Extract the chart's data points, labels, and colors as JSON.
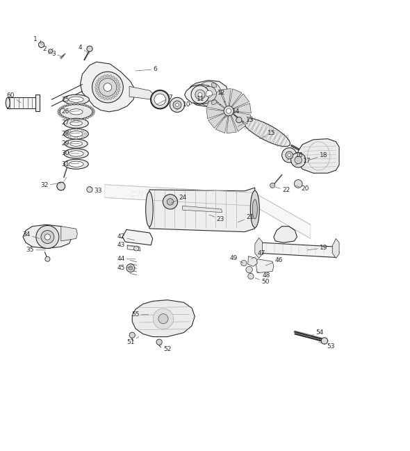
{
  "bg_color": "#ffffff",
  "fig_width": 5.9,
  "fig_height": 6.49,
  "watermark": "©ReplacementParts.com",
  "watermark_color": "#bbbbbb",
  "line_color": "#2a2a2a",
  "label_color": "#2a2a2a",
  "label_fontsize": 6.5,
  "dpi": 100,
  "label_data": {
    "1": [
      0.103,
      0.942,
      0.086,
      0.955
    ],
    "2": [
      0.128,
      0.921,
      0.108,
      0.932
    ],
    "3": [
      0.155,
      0.912,
      0.13,
      0.92
    ],
    "4": [
      0.218,
      0.92,
      0.195,
      0.935
    ],
    "6": [
      0.33,
      0.878,
      0.378,
      0.882
    ],
    "7": [
      0.382,
      0.796,
      0.415,
      0.813
    ],
    "10": [
      0.43,
      0.782,
      0.455,
      0.796
    ],
    "11": [
      0.462,
      0.795,
      0.49,
      0.81
    ],
    "12": [
      0.49,
      0.812,
      0.54,
      0.825
    ],
    "13": [
      0.58,
      0.742,
      0.61,
      0.758
    ],
    "14": [
      0.545,
      0.762,
      0.575,
      0.778
    ],
    "15": [
      0.633,
      0.712,
      0.663,
      0.726
    ],
    "16": [
      0.7,
      0.66,
      0.73,
      0.672
    ],
    "17": [
      0.72,
      0.648,
      0.75,
      0.658
    ],
    "18": [
      0.755,
      0.66,
      0.79,
      0.672
    ],
    "19": [
      0.75,
      0.44,
      0.79,
      0.445
    ],
    "20": [
      0.72,
      0.598,
      0.745,
      0.59
    ],
    "21": [
      0.58,
      0.508,
      0.61,
      0.52
    ],
    "22": [
      0.672,
      0.594,
      0.698,
      0.586
    ],
    "23": [
      0.51,
      0.526,
      0.538,
      0.516
    ],
    "24": [
      0.418,
      0.555,
      0.445,
      0.568
    ],
    "25": [
      0.193,
      0.808,
      0.158,
      0.808
    ],
    "26": [
      0.193,
      0.78,
      0.158,
      0.778
    ],
    "27": [
      0.193,
      0.752,
      0.158,
      0.752
    ],
    "28": [
      0.193,
      0.726,
      0.158,
      0.724
    ],
    "29": [
      0.193,
      0.7,
      0.158,
      0.7
    ],
    "30": [
      0.193,
      0.676,
      0.158,
      0.676
    ],
    "31": [
      0.193,
      0.652,
      0.158,
      0.65
    ],
    "32": [
      0.148,
      0.604,
      0.108,
      0.598
    ],
    "33": [
      0.215,
      0.596,
      0.238,
      0.585
    ],
    "34": [
      0.095,
      0.468,
      0.063,
      0.478
    ],
    "35": [
      0.11,
      0.44,
      0.072,
      0.44
    ],
    "42": [
      0.328,
      0.464,
      0.295,
      0.472
    ],
    "43": [
      0.335,
      0.448,
      0.295,
      0.452
    ],
    "44": [
      0.33,
      0.418,
      0.295,
      0.418
    ],
    "45": [
      0.32,
      0.398,
      0.295,
      0.396
    ],
    "46": [
      0.648,
      0.402,
      0.68,
      0.415
    ],
    "47": [
      0.613,
      0.418,
      0.638,
      0.432
    ],
    "48": [
      0.625,
      0.388,
      0.65,
      0.378
    ],
    "49": [
      0.593,
      0.408,
      0.57,
      0.42
    ],
    "50": [
      0.622,
      0.372,
      0.648,
      0.362
    ],
    "51": [
      0.338,
      0.228,
      0.318,
      0.215
    ],
    "52": [
      0.39,
      0.21,
      0.408,
      0.198
    ],
    "53": [
      0.778,
      0.215,
      0.808,
      0.205
    ],
    "54": [
      0.75,
      0.228,
      0.78,
      0.238
    ],
    "55": [
      0.362,
      0.282,
      0.33,
      0.282
    ],
    "60": [
      0.05,
      0.8,
      0.025,
      0.818
    ]
  }
}
